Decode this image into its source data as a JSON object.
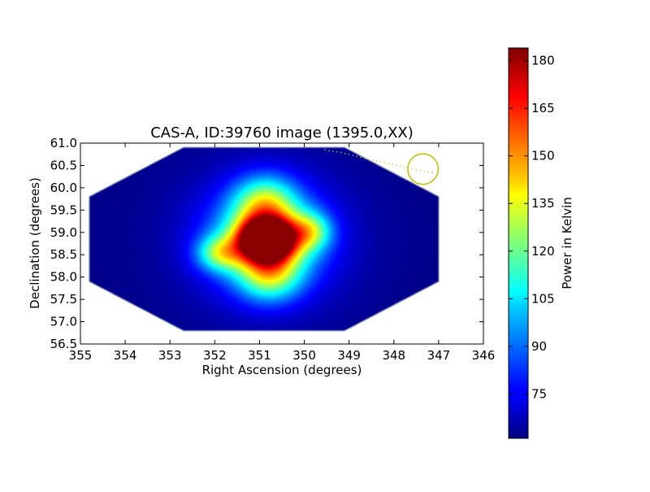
{
  "chart_data": {
    "type": "heatmap",
    "title": "CAS-A, ID:39760 image (1395.0,XX)",
    "xlabel": "Right Ascension (degrees)",
    "ylabel": "Declination (degrees)",
    "xlim": [
      355,
      346
    ],
    "ylim": [
      56.5,
      61.0
    ],
    "x_ticks": [
      "355",
      "354",
      "353",
      "352",
      "351",
      "350",
      "349",
      "348",
      "347",
      "346"
    ],
    "y_ticks": [
      "56.5",
      "57.0",
      "57.5",
      "58.0",
      "58.5",
      "59.0",
      "59.5",
      "60.0",
      "60.5",
      "61.0"
    ],
    "grid": false,
    "colormap": "jet",
    "colorbar": {
      "label": "Power in Kelvin",
      "range": [
        61,
        184
      ],
      "ticks": [
        "75",
        "90",
        "105",
        "120",
        "135",
        "150",
        "165",
        "180"
      ]
    },
    "peak": {
      "ra": 350.85,
      "dec": 58.85,
      "value": 183
    },
    "background_value": 62,
    "coverage_polygon": [
      [
        354.8,
        59.8
      ],
      [
        352.7,
        60.9
      ],
      [
        349.1,
        60.9
      ],
      [
        347.0,
        59.8
      ],
      [
        347.0,
        57.9
      ],
      [
        349.1,
        56.8
      ],
      [
        352.7,
        56.8
      ],
      [
        354.8,
        57.9
      ]
    ],
    "marker_circle": {
      "ra": 347.35,
      "dec": 60.42,
      "radius_deg": 0.34,
      "color": "#bfbf00"
    },
    "track_points": [
      [
        349.55,
        60.85
      ],
      [
        349.2,
        60.79
      ],
      [
        348.85,
        60.71
      ],
      [
        348.5,
        60.62
      ],
      [
        348.15,
        60.55
      ],
      [
        347.8,
        60.47
      ],
      [
        347.45,
        60.39
      ],
      [
        347.1,
        60.33
      ]
    ]
  }
}
